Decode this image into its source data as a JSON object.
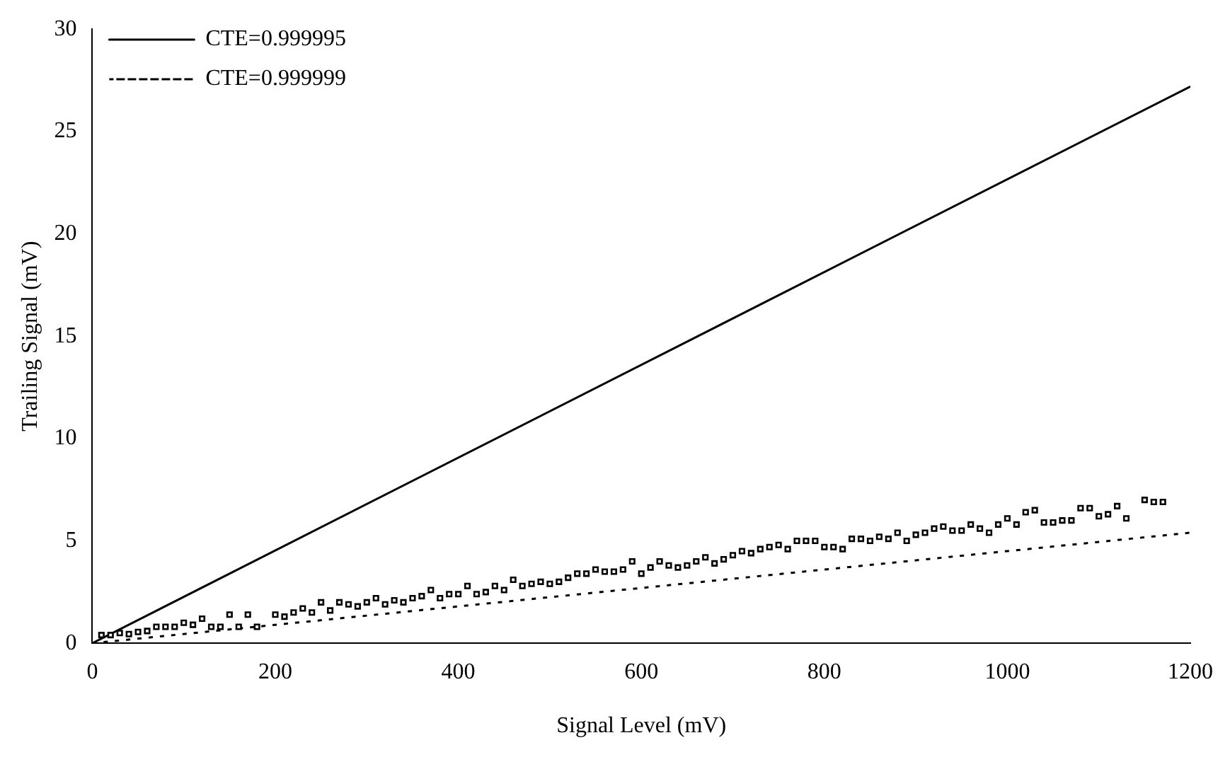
{
  "chart_data": {
    "type": "scatter",
    "xlabel": "Signal Level (mV)",
    "ylabel": "Trailing Signal (mV)",
    "xlim": [
      0,
      1200
    ],
    "xticks": [
      0,
      200,
      400,
      600,
      800,
      1000,
      1200
    ],
    "ylim": [
      0,
      30
    ],
    "yticks": [
      0,
      5,
      10,
      15,
      20,
      25,
      30
    ],
    "grid": false,
    "legend": "top left",
    "series": [
      {
        "color": "#000000",
        "marker": "square",
        "x": [
          10,
          20,
          30,
          40,
          50,
          60,
          70,
          80,
          90,
          100,
          110,
          120,
          130,
          140,
          150,
          160,
          170,
          180,
          200,
          210,
          220,
          230,
          240,
          250,
          260,
          270,
          280,
          290,
          300,
          310,
          320,
          330,
          340,
          350,
          360,
          370,
          380,
          390,
          400,
          410,
          420,
          430,
          440,
          450,
          460,
          470,
          480,
          490,
          500,
          510,
          520,
          530,
          540,
          550,
          560,
          570,
          580,
          590,
          600,
          610,
          620,
          630,
          640,
          650,
          660,
          670,
          680,
          690,
          700,
          710,
          720,
          730,
          740,
          750,
          760,
          770,
          780,
          790,
          800,
          810,
          820,
          830,
          840,
          850,
          860,
          870,
          880,
          890,
          900,
          910,
          920,
          930,
          940,
          950,
          960,
          970,
          980,
          990,
          1000,
          1010,
          1020,
          1030,
          1040,
          1050,
          1060,
          1070,
          1080,
          1090,
          1100,
          1110,
          1120,
          1130,
          1150,
          1160,
          1170
        ],
        "values": [
          0.4,
          0.4,
          0.5,
          0.45,
          0.55,
          0.6,
          0.8,
          0.8,
          0.8,
          1.0,
          0.9,
          1.2,
          0.8,
          0.8,
          1.4,
          0.8,
          1.4,
          0.8,
          1.4,
          1.3,
          1.5,
          1.7,
          1.5,
          2.0,
          1.6,
          2.0,
          1.9,
          1.8,
          2.0,
          2.2,
          1.9,
          2.1,
          2.0,
          2.2,
          2.3,
          2.6,
          2.2,
          2.4,
          2.4,
          2.8,
          2.4,
          2.5,
          2.8,
          2.6,
          3.1,
          2.8,
          2.9,
          3.0,
          2.9,
          3.0,
          3.2,
          3.4,
          3.4,
          3.6,
          3.5,
          3.5,
          3.6,
          4.0,
          3.4,
          3.7,
          4.0,
          3.8,
          3.7,
          3.8,
          4.0,
          4.2,
          3.9,
          4.1,
          4.3,
          4.5,
          4.4,
          4.6,
          4.7,
          4.8,
          4.6,
          5.0,
          5.0,
          5.0,
          4.7,
          4.7,
          4.6,
          5.1,
          5.1,
          5.0,
          5.2,
          5.1,
          5.4,
          5.0,
          5.3,
          5.4,
          5.6,
          5.7,
          5.5,
          5.5,
          5.8,
          5.6,
          5.4,
          5.8,
          6.1,
          5.8,
          6.4,
          6.5,
          5.9,
          5.9,
          6.0,
          6.0,
          6.6,
          6.6,
          6.2,
          6.3,
          6.7,
          6.1,
          7.0,
          6.9,
          6.9
        ]
      },
      {
        "type": "line",
        "name": "CTE=0.999995",
        "color": "#000000",
        "line_style": "solid",
        "marker": "none",
        "x": [
          0,
          1200
        ],
        "values": [
          0,
          27.2
        ]
      },
      {
        "type": "line",
        "name": "CTE=0.999999",
        "color": "#000000",
        "line_style": "dotted",
        "marker": "none",
        "x": [
          0,
          1200
        ],
        "values": [
          0,
          5.4
        ]
      }
    ]
  }
}
